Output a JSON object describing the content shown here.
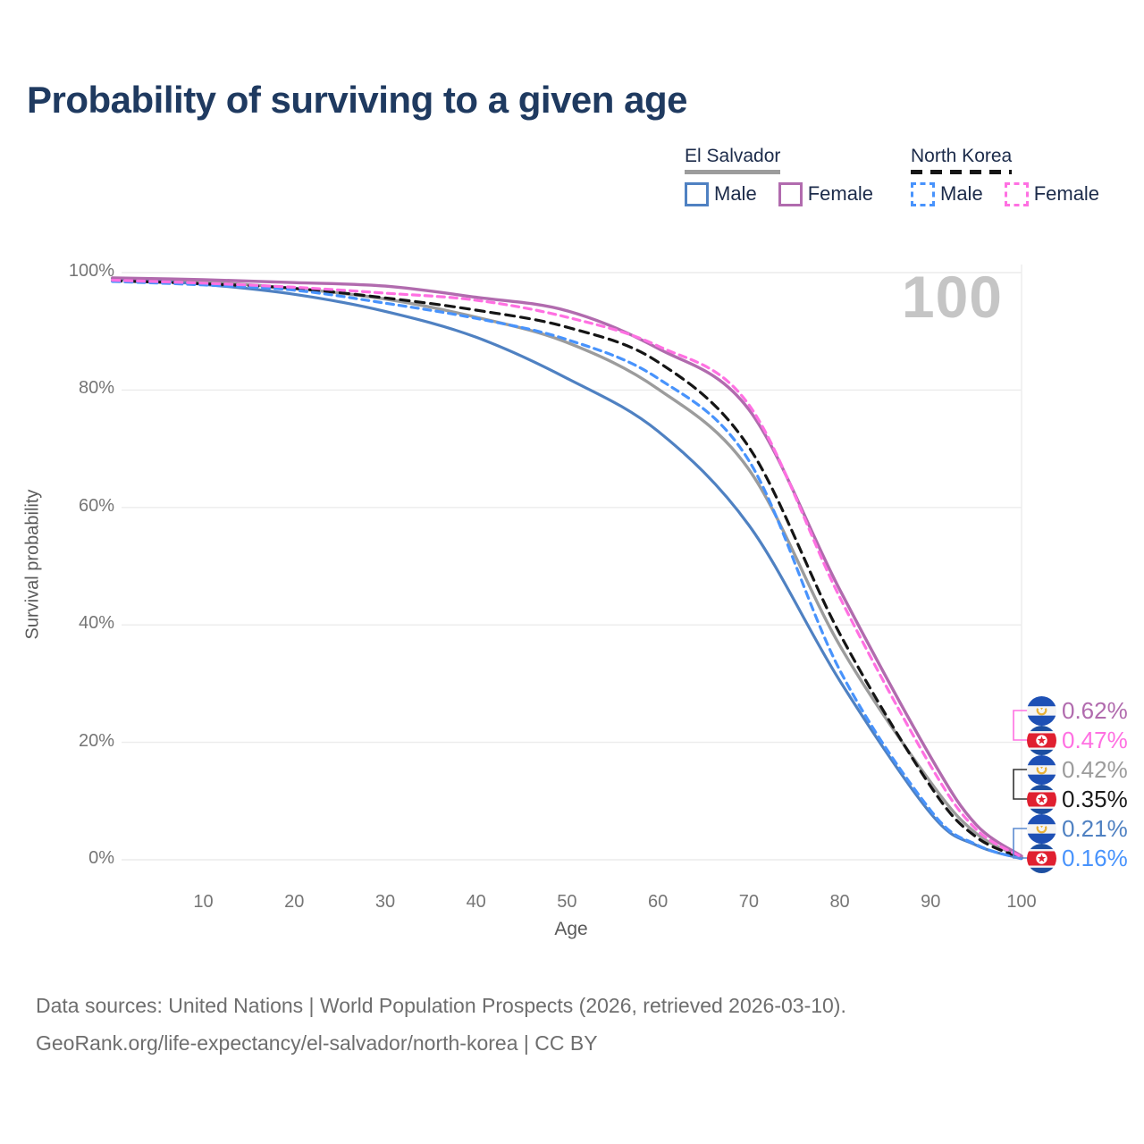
{
  "title": "Probability of surviving to a given age",
  "watermark": "100",
  "legend": {
    "groups": [
      {
        "name": "El Salvador",
        "line_style": "solid",
        "line_color": "#9c9c9c",
        "items": [
          {
            "label": "Male",
            "color": "#4f81c2",
            "dashed": false
          },
          {
            "label": "Female",
            "color": "#b16bae",
            "dashed": false
          }
        ]
      },
      {
        "name": "North Korea",
        "line_style": "dashed",
        "line_color": "#151515",
        "items": [
          {
            "label": "Male",
            "color": "#4893fc",
            "dashed": true
          },
          {
            "label": "Female",
            "color": "#ff70e2",
            "dashed": true
          }
        ]
      }
    ]
  },
  "chart_data": {
    "type": "line",
    "title": "Probability of surviving to a given age",
    "xlabel": "Age",
    "ylabel": "Survival probability",
    "xlim": [
      1,
      100
    ],
    "ylim": [
      0,
      100
    ],
    "grid": true,
    "legend_position": "top-right",
    "xticks": [
      10,
      20,
      30,
      40,
      50,
      60,
      70,
      80,
      90,
      100
    ],
    "yticks": [
      "0%",
      "20%",
      "40%",
      "60%",
      "80%",
      "100%"
    ],
    "ages": [
      0,
      10,
      20,
      30,
      40,
      50,
      60,
      70,
      80,
      90,
      95,
      100
    ],
    "series": [
      {
        "name": "El Salvador Both sexes",
        "country": "El Salvador",
        "sex": "Both sexes",
        "color": "#9c9c9c",
        "dash": null,
        "width": 3.4,
        "values": [
          99.0,
          98.4,
          97.3,
          95.5,
          92.4,
          88.1,
          80.2,
          66.5,
          36.5,
          13.2,
          4.5,
          0.42
        ]
      },
      {
        "name": "El Salvador Male",
        "country": "El Salvador",
        "sex": "Male",
        "color": "#4f81c2",
        "dash": null,
        "width": 3.2,
        "values": [
          99.0,
          98.0,
          96.3,
          93.4,
          89.0,
          82.0,
          73.0,
          57.0,
          30.5,
          7.9,
          2.5,
          0.21
        ]
      },
      {
        "name": "North Korea Both sexes",
        "country": "North Korea",
        "sex": "Both sexes",
        "color": "#151515",
        "dash": [
          10,
          7
        ],
        "width": 3.2,
        "values": [
          98.6,
          98.1,
          97.3,
          95.7,
          93.6,
          90.7,
          84.8,
          70.3,
          38.5,
          12.5,
          3.9,
          0.35
        ]
      },
      {
        "name": "North Korea Male",
        "country": "North Korea",
        "sex": "Male",
        "color": "#4893fc",
        "dash": [
          8,
          6
        ],
        "width": 3.2,
        "values": [
          98.5,
          97.9,
          97.0,
          94.8,
          92.2,
          88.6,
          82.0,
          68.0,
          32.3,
          8.4,
          2.6,
          0.16
        ]
      },
      {
        "name": "El Salvador Female",
        "country": "El Salvador",
        "sex": "Female",
        "color": "#b16bae",
        "dash": null,
        "width": 3.4,
        "values": [
          99.1,
          98.8,
          98.3,
          97.7,
          95.8,
          93.5,
          87.1,
          76.7,
          46.0,
          17.5,
          6.0,
          0.62
        ]
      },
      {
        "name": "North Korea Female",
        "country": "North Korea",
        "sex": "Female",
        "color": "#ff70e2",
        "dash": [
          8,
          6
        ],
        "width": 3.2,
        "values": [
          98.7,
          98.2,
          97.5,
          96.5,
          95.3,
          92.4,
          87.5,
          77.5,
          44.7,
          16.0,
          5.2,
          0.47
        ]
      }
    ]
  },
  "end_labels": [
    {
      "value": "0.62%",
      "color": "#b16bae",
      "flag": "el-salvador",
      "series": "El Salvador Female"
    },
    {
      "value": "0.47%",
      "color": "#ff70e2",
      "flag": "north-korea",
      "series": "North Korea Female"
    },
    {
      "value": "0.42%",
      "color": "#9c9c9c",
      "flag": "el-salvador",
      "series": "El Salvador Both sexes"
    },
    {
      "value": "0.35%",
      "color": "#1a1a1a",
      "flag": "north-korea",
      "series": "North Korea Both sexes"
    },
    {
      "value": "0.21%",
      "color": "#4f81c2",
      "flag": "el-salvador",
      "series": "El Salvador Male"
    },
    {
      "value": "0.16%",
      "color": "#4893fc",
      "flag": "north-korea",
      "series": "North Korea Male"
    }
  ],
  "footer": {
    "line1": "Data sources: United Nations | World Population Prospects (2026, retrieved 2026-03-10).",
    "line2": "GeoRank.org/life-expectancy/el-salvador/north-korea | CC BY"
  }
}
